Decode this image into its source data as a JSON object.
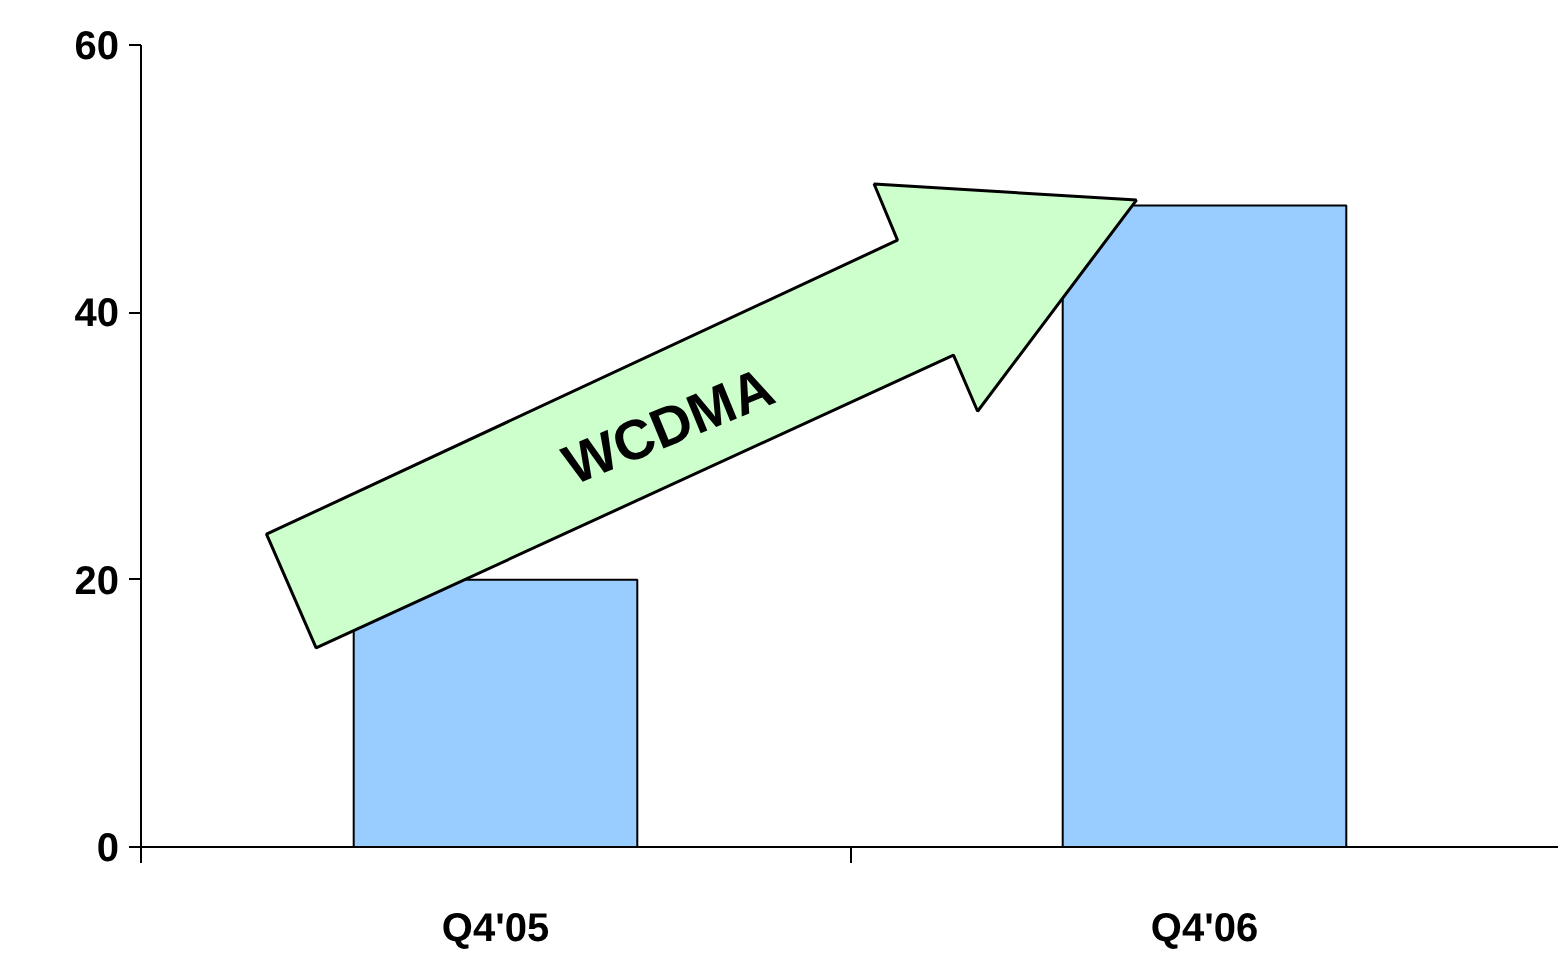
{
  "chart_data": {
    "type": "bar",
    "categories": [
      "Q4'05",
      "Q4'06"
    ],
    "values": [
      20,
      48
    ],
    "color": "#99ccff",
    "ylim": [
      0,
      60
    ],
    "yticks": [
      0,
      20,
      40,
      60
    ],
    "grid": false,
    "annotations": [
      "WCDMA"
    ]
  }
}
